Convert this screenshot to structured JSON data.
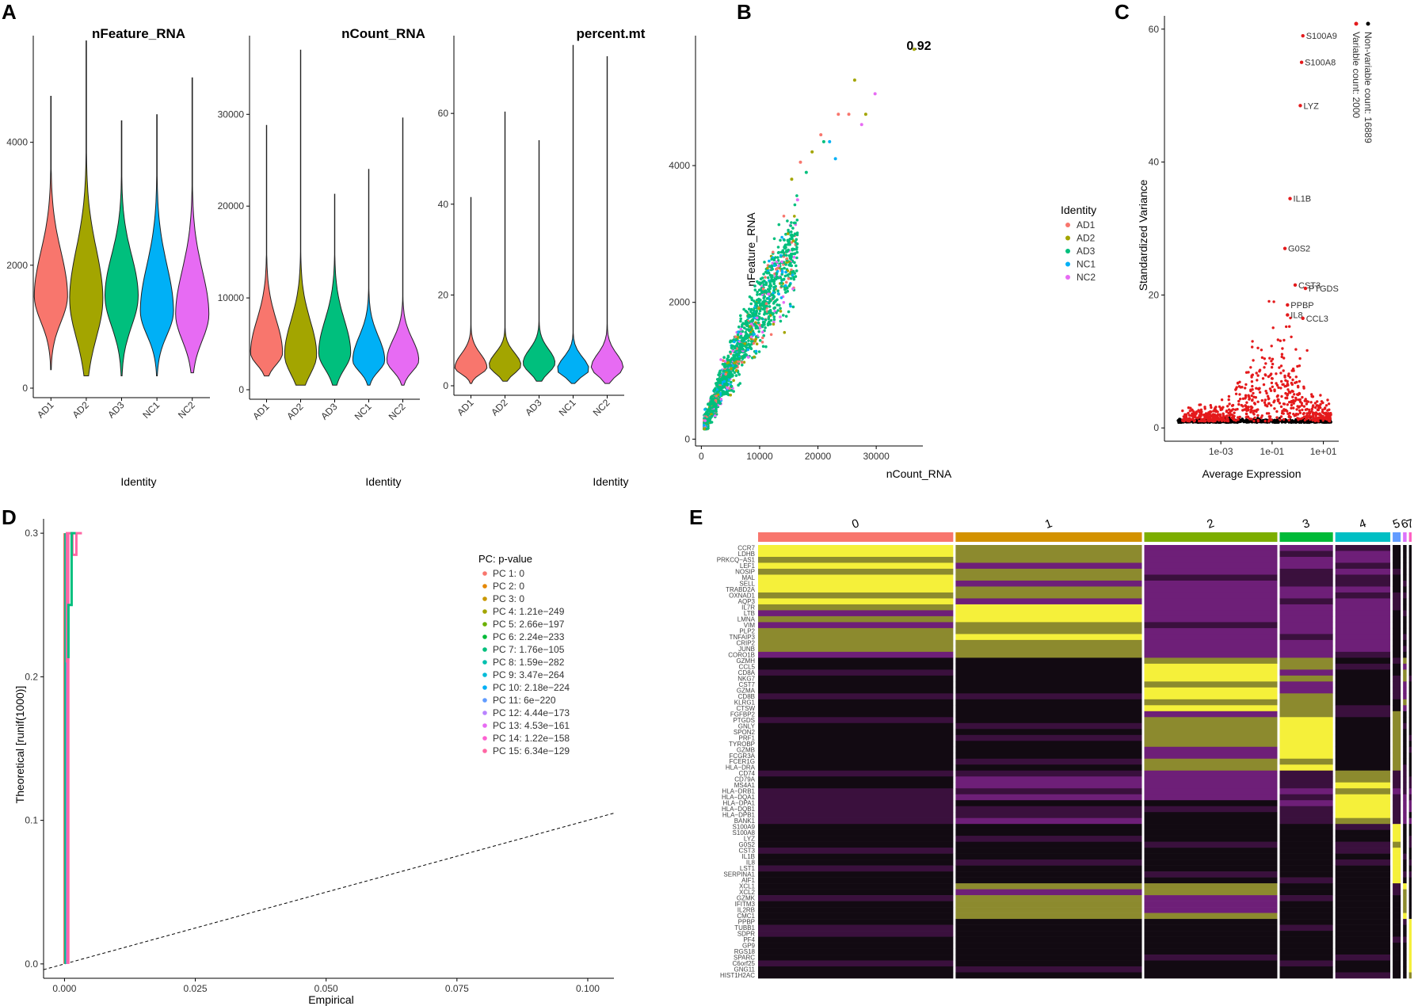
{
  "panel_letters": [
    "A",
    "B",
    "C",
    "D",
    "E"
  ],
  "chart_data": [
    {
      "id": "violin_nFeature",
      "type": "violin",
      "title": "nFeature_RNA",
      "xlabel": "Identity",
      "ylabel": "",
      "categories": [
        "AD1",
        "AD2",
        "AD3",
        "NC1",
        "NC2"
      ],
      "colors": [
        "#F8766D",
        "#A3A500",
        "#00BF7D",
        "#00B0F6",
        "#E76BF3"
      ],
      "ylim": [
        0,
        5800
      ],
      "yticks": [
        0,
        2000,
        4000
      ],
      "violins": [
        {
          "min": 300,
          "max": 4750,
          "median": 1500,
          "upper_shoulder": 2700,
          "lower_shoulder": 900
        },
        {
          "min": 200,
          "max": 5650,
          "median": 1450,
          "upper_shoulder": 2800,
          "lower_shoulder": 550
        },
        {
          "min": 200,
          "max": 4350,
          "median": 1500,
          "upper_shoulder": 2600,
          "lower_shoulder": 800
        },
        {
          "min": 200,
          "max": 4450,
          "median": 1250,
          "upper_shoulder": 2500,
          "lower_shoulder": 700
        },
        {
          "min": 250,
          "max": 5050,
          "median": 1200,
          "upper_shoulder": 2400,
          "lower_shoulder": 600
        }
      ]
    },
    {
      "id": "violin_nCount",
      "type": "violin",
      "title": "nCount_RNA",
      "xlabel": "Identity",
      "ylabel": "",
      "categories": [
        "AD1",
        "AD2",
        "AD3",
        "NC1",
        "NC2"
      ],
      "colors": [
        "#F8766D",
        "#A3A500",
        "#00BF7D",
        "#00B0F6",
        "#E76BF3"
      ],
      "ylim": [
        0,
        39000
      ],
      "yticks": [
        0,
        10000,
        20000,
        30000
      ],
      "violins": [
        {
          "min": 1500,
          "max": 28800,
          "median": 4000,
          "upper_shoulder": 10000,
          "lower_shoulder": 2200
        },
        {
          "min": 500,
          "max": 37000,
          "median": 3800,
          "upper_shoulder": 10000,
          "lower_shoulder": 800
        },
        {
          "min": 500,
          "max": 21300,
          "median": 4000,
          "upper_shoulder": 10000,
          "lower_shoulder": 1500
        },
        {
          "min": 500,
          "max": 24000,
          "median": 3200,
          "upper_shoulder": 7500,
          "lower_shoulder": 1500
        },
        {
          "min": 500,
          "max": 29600,
          "median": 3200,
          "upper_shoulder": 7000,
          "lower_shoulder": 1500
        }
      ]
    },
    {
      "id": "violin_percentmt",
      "type": "violin",
      "title": "percent.mt",
      "xlabel": "Identity",
      "ylabel": "",
      "categories": [
        "AD1",
        "AD2",
        "AD3",
        "NC1",
        "NC2"
      ],
      "colors": [
        "#F8766D",
        "#A3A500",
        "#00BF7D",
        "#00B0F6",
        "#E76BF3"
      ],
      "ylim": [
        0,
        78
      ],
      "yticks": [
        0,
        20,
        40,
        60
      ],
      "violins": [
        {
          "min": 0.5,
          "max": 41.5,
          "median": 4,
          "upper_shoulder": 9,
          "lower_shoulder": 2
        },
        {
          "min": 1,
          "max": 60.3,
          "median": 4.5,
          "upper_shoulder": 9,
          "lower_shoulder": 2
        },
        {
          "min": 1,
          "max": 54,
          "median": 5,
          "upper_shoulder": 10,
          "lower_shoulder": 2
        },
        {
          "min": 0.5,
          "max": 75,
          "median": 3.5,
          "upper_shoulder": 8,
          "lower_shoulder": 1.5
        },
        {
          "min": 0.5,
          "max": 72.5,
          "median": 4,
          "upper_shoulder": 9,
          "lower_shoulder": 1.5
        }
      ]
    },
    {
      "id": "scatter_count_feature",
      "type": "scatter",
      "title": "0.92",
      "xlabel": "nCount_RNA",
      "ylabel": "nFeature_RNA",
      "xlim": [
        -1000,
        38000
      ],
      "ylim": [
        -100,
        5900
      ],
      "xticks": [
        0,
        10000,
        20000,
        30000
      ],
      "yticks": [
        0,
        2000,
        4000
      ],
      "legend_title": "Identity",
      "legend_position": "right",
      "series": [
        {
          "name": "AD1",
          "color": "#F8766D"
        },
        {
          "name": "AD2",
          "color": "#A3A500"
        },
        {
          "name": "AD3",
          "color": "#00BF7D"
        },
        {
          "name": "NC1",
          "color": "#00B0F6"
        },
        {
          "name": "NC2",
          "color": "#E76BF3"
        }
      ],
      "outliers": [
        {
          "x": 36500,
          "y": 5700,
          "series": "AD2"
        },
        {
          "x": 29800,
          "y": 5050,
          "series": "NC2"
        },
        {
          "x": 26300,
          "y": 5250,
          "series": "AD2"
        },
        {
          "x": 28200,
          "y": 4750,
          "series": "AD2"
        },
        {
          "x": 25300,
          "y": 4750,
          "series": "AD1"
        },
        {
          "x": 23500,
          "y": 4750,
          "series": "AD1"
        },
        {
          "x": 27500,
          "y": 4600,
          "series": "NC2"
        },
        {
          "x": 22000,
          "y": 4350,
          "series": "NC1"
        },
        {
          "x": 23000,
          "y": 4100,
          "series": "NC1"
        },
        {
          "x": 20500,
          "y": 4450,
          "series": "AD1"
        },
        {
          "x": 19000,
          "y": 4200,
          "series": "AD2"
        },
        {
          "x": 18000,
          "y": 3900,
          "series": "AD3"
        },
        {
          "x": 17000,
          "y": 4050,
          "series": "AD1"
        },
        {
          "x": 15500,
          "y": 3800,
          "series": "AD2"
        },
        {
          "x": 21000,
          "y": 4350,
          "series": "AD3"
        },
        {
          "x": 16500,
          "y": 3500,
          "series": "NC2"
        }
      ]
    },
    {
      "id": "variable_features",
      "type": "scatter",
      "title": "",
      "xlabel": "Average Expression",
      "ylabel": "Standardized Variance",
      "xscale": "log10",
      "xlim": [
        -5.2,
        1.6
      ],
      "ylim": [
        -2,
        62
      ],
      "xticks": [
        "1e-03",
        "1e-01",
        "1e+01"
      ],
      "yticks": [
        0,
        20,
        40,
        60
      ],
      "legend_entries": [
        "Non-variable count: 16889",
        "Variable count: 2000"
      ],
      "legend_colors": [
        "#000000",
        "#E41A1C"
      ],
      "labeled_genes": [
        {
          "gene": "S100A9",
          "log10x": 0.2,
          "y": 59
        },
        {
          "gene": "S100A8",
          "log10x": 0.15,
          "y": 55
        },
        {
          "gene": "LYZ",
          "log10x": 0.1,
          "y": 48.5
        },
        {
          "gene": "IL1B",
          "log10x": -0.3,
          "y": 34.5
        },
        {
          "gene": "G0S2",
          "log10x": -0.5,
          "y": 27
        },
        {
          "gene": "CST3",
          "log10x": -0.1,
          "y": 21.5
        },
        {
          "gene": "PTGDS",
          "log10x": 0.3,
          "y": 21
        },
        {
          "gene": "PPBP",
          "log10x": -0.4,
          "y": 18.5
        },
        {
          "gene": "IL8",
          "log10x": -0.4,
          "y": 17
        },
        {
          "gene": "CCL3",
          "log10x": 0.2,
          "y": 16.5
        }
      ]
    },
    {
      "id": "jackstraw",
      "type": "line",
      "title": "",
      "xlabel": "Empirical",
      "ylabel": "Theoretical [runif(1000)]",
      "xlim": [
        -0.004,
        0.105
      ],
      "ylim": [
        -0.01,
        0.31
      ],
      "xticks": [
        0.0,
        0.025,
        0.05,
        0.075,
        0.1
      ],
      "xtick_labels": [
        "0.000",
        "0.025",
        "0.050",
        "0.075",
        "0.100"
      ],
      "yticks": [
        0.0,
        0.1,
        0.2,
        0.3
      ],
      "ytick_labels": [
        "0.0",
        "0.1",
        "0.2",
        "0.3"
      ],
      "legend_title": "PC: p-value",
      "legend_position": "top-right",
      "reference_line": "y = x",
      "series": [
        {
          "name": "PC 1: 0",
          "color": "#F8766D"
        },
        {
          "name": "PC 2: 0",
          "color": "#E58700"
        },
        {
          "name": "PC 3: 0",
          "color": "#C99800"
        },
        {
          "name": "PC 4: 1.21e−249",
          "color": "#A3A500"
        },
        {
          "name": "PC 5: 2.66e−197",
          "color": "#6BB100"
        },
        {
          "name": "PC 6: 2.24e−233",
          "color": "#00BA38"
        },
        {
          "name": "PC 7: 1.76e−105",
          "color": "#00BF7D"
        },
        {
          "name": "PC 8: 1.59e−282",
          "color": "#00C0AF"
        },
        {
          "name": "PC 9: 3.47e−264",
          "color": "#00BCD8"
        },
        {
          "name": "PC 10: 2.18e−224",
          "color": "#00B0F6"
        },
        {
          "name": "PC 11: 6e−220",
          "color": "#619CFF"
        },
        {
          "name": "PC 12: 4.44e−173",
          "color": "#B983FF"
        },
        {
          "name": "PC 13: 4.53e−161",
          "color": "#E76BF3"
        },
        {
          "name": "PC 14: 1.22e−158",
          "color": "#FD61D1"
        },
        {
          "name": "PC 15: 6.34e−129",
          "color": "#FF67A4"
        }
      ]
    },
    {
      "id": "heatmap",
      "type": "heatmap",
      "title": "",
      "clusters": [
        {
          "label": "0",
          "color": "#F8766D",
          "weight": 220
        },
        {
          "label": "1",
          "color": "#D39200",
          "weight": 210
        },
        {
          "label": "2",
          "color": "#7CAE00",
          "weight": 150
        },
        {
          "label": "3",
          "color": "#00BA38",
          "weight": 60
        },
        {
          "label": "4",
          "color": "#00BFC4",
          "weight": 62
        },
        {
          "label": "5",
          "color": "#619CFF",
          "weight": 9
        },
        {
          "label": "6",
          "color": "#DB72FB",
          "weight": 4
        },
        {
          "label": "7",
          "color": "#FF61C3",
          "weight": 3
        }
      ],
      "gene_groups": [
        {
          "cluster": "0",
          "genes": [
            "CCR7",
            "LDHB",
            "PRKCQ−AS1",
            "LEF1",
            "NOSIP",
            "MAL",
            "SELL",
            "TRABD2A",
            "OXNAD1",
            "AQP3"
          ]
        },
        {
          "cluster": "1",
          "genes": [
            "IL7R",
            "LTB",
            "LMNA",
            "VIM",
            "PLP2",
            "TNFAIP3",
            "CRIP2",
            "JUNB",
            "CORO1B"
          ]
        },
        {
          "cluster": "2",
          "genes": [
            "GZMH",
            "CCL5",
            "CD8A",
            "NKG7",
            "CST7",
            "GZMA",
            "CD8B",
            "KLRG1",
            "CTSW"
          ]
        },
        {
          "cluster": "3",
          "genes": [
            "FGFBP2",
            "PTGDS",
            "GNLY",
            "SPON2",
            "PRF1",
            "TYROBP",
            "GZMB",
            "FCGR3A",
            "FCER1G",
            "HLA−DRA"
          ]
        },
        {
          "cluster": "4",
          "genes": [
            "CD74",
            "CD79A",
            "MS4A1",
            "HLA−DRB1",
            "HLA−DQA1",
            "HLA−DPA1",
            "HLA−DQB1",
            "HLA−DPB1",
            "BANK1"
          ]
        },
        {
          "cluster": "5",
          "genes": [
            "S100A9",
            "S100A8",
            "LYZ",
            "G0S2",
            "CST3",
            "IL1B",
            "IL8",
            "LST1",
            "SERPINA1",
            "AIF1"
          ]
        },
        {
          "cluster": "6",
          "genes": [
            "XCL1",
            "XCL2",
            "GZMK",
            "IFITM3",
            "IL2RB",
            "CMC1"
          ]
        },
        {
          "cluster": "7",
          "genes": [
            "PPBP",
            "TUBB1",
            "SDPR",
            "PF4",
            "GP9",
            "RGS18",
            "SPARC",
            "C6orf25",
            "GNG11",
            "HIST1H2AC"
          ]
        }
      ]
    }
  ]
}
